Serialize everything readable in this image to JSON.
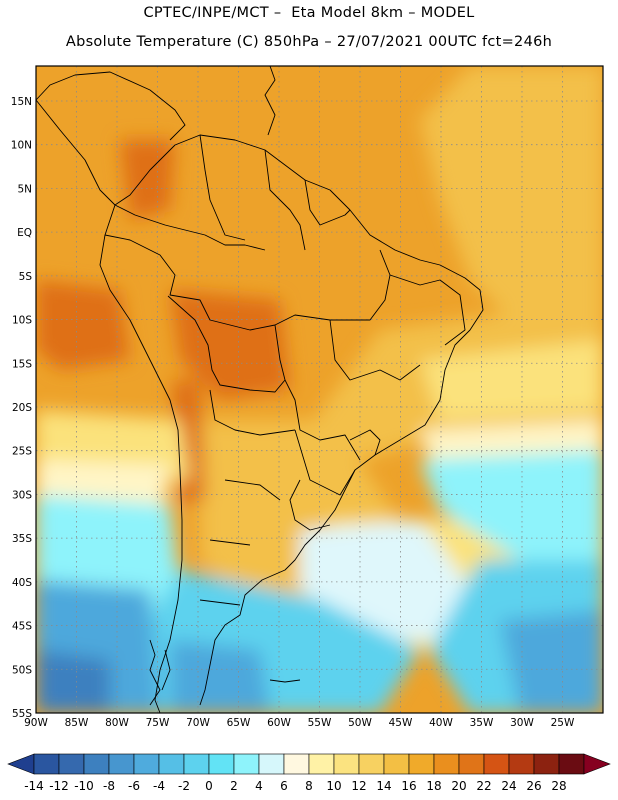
{
  "header": {
    "line1": "CPTEC/INPE/MCT –  Eta Model 8km – MODEL",
    "line2": "Absolute Temperature (C) 850hPa – 27/07/2021 00UTC fct=246h"
  },
  "lat_labels": [
    "15N",
    "10N",
    "5N",
    "EQ",
    "5S",
    "10S",
    "15S",
    "20S",
    "25S",
    "30S",
    "35S",
    "40S",
    "45S",
    "50S",
    "55S"
  ],
  "lon_labels": [
    "90W",
    "85W",
    "80W",
    "75W",
    "70W",
    "65W",
    "60W",
    "55W",
    "50W",
    "45W",
    "40W",
    "35W",
    "30W",
    "25W"
  ],
  "colorbar": {
    "labels": [
      "-14",
      "-12",
      "-10",
      "-8",
      "-6",
      "-4",
      "-2",
      "0",
      "2",
      "4",
      "6",
      "8",
      "10",
      "12",
      "14",
      "16",
      "18",
      "20",
      "22",
      "24",
      "26",
      "28"
    ],
    "colors": [
      "#1f3f8f",
      "#2a56a0",
      "#3569ae",
      "#3d80bf",
      "#4796cf",
      "#4fabdd",
      "#55bfe6",
      "#5dd2ee",
      "#62e3f5",
      "#8ef3fb",
      "#d6f7fb",
      "#fff8e0",
      "#fff2a6",
      "#fbe380",
      "#f7d161",
      "#f3bf44",
      "#f0aa2a",
      "#ea8f1e",
      "#e07418",
      "#d55414",
      "#b43a12",
      "#8c2210",
      "#6a0c12",
      "#860020"
    ]
  },
  "temperature_colors": {
    "deep_orange": "#df6f16",
    "orange": "#eda22a",
    "amber": "#f3c04a",
    "light_yellow": "#fbe27c",
    "pale_yellow": "#fff5c6",
    "pale": "#dff7fb",
    "light_cyan": "#8ef3fb",
    "cyan": "#5dd2ee",
    "mid_blue": "#4da8dc",
    "blue": "#3d80bf"
  }
}
